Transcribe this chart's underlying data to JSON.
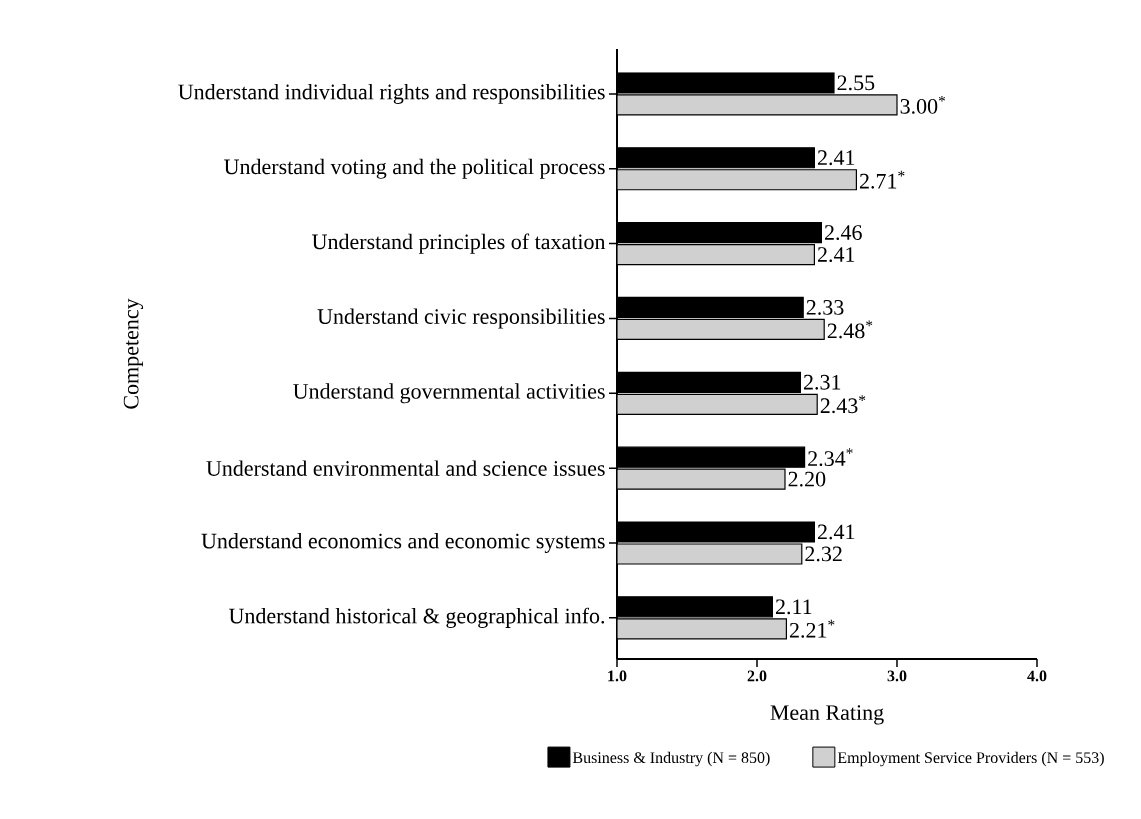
{
  "chart_data": {
    "type": "bar",
    "orientation": "horizontal",
    "xlabel": "Mean Rating",
    "ylabel": "Competency",
    "categories": [
      "Understand individual rights and responsibilities",
      "Understand voting and the political process",
      "Understand principles of taxation",
      "Understand civic responsibilities",
      "Understand governmental activities",
      "Understand environmental and science issues",
      "Understand economics and economic systems",
      "Understand historical & geographical info."
    ],
    "series": [
      {
        "name": "Business & Industry (N = 850)",
        "color": "#000000",
        "values": [
          2.55,
          2.41,
          2.46,
          2.33,
          2.31,
          2.34,
          2.41,
          2.11
        ],
        "value_labels": [
          "2.55",
          "2.41",
          "2.46",
          "2.33",
          "2.31",
          "2.34$^{*}$",
          "2.41",
          "2.11"
        ]
      },
      {
        "name": "Employment Service Providers (N = 553)",
        "color": "#d0d0d0",
        "values": [
          3.0,
          2.71,
          2.41,
          2.48,
          2.43,
          2.2,
          2.32,
          2.21
        ],
        "value_labels": [
          "3.00$^{*}$",
          "2.71$^{*}$",
          "2.41",
          "2.48$^{*}$",
          "2.43$^{*}$",
          "2.20",
          "2.32",
          "2.21$^{*}$"
        ]
      }
    ],
    "xlim": [
      1,
      4
    ],
    "xticks": [
      {
        "value": 1,
        "label": "1.0"
      },
      {
        "value": 2,
        "label": "2.0"
      },
      {
        "value": 3,
        "label": "3.0"
      },
      {
        "value": 4,
        "label": "4.0"
      }
    ],
    "grid": false,
    "legend": "bottom"
  }
}
